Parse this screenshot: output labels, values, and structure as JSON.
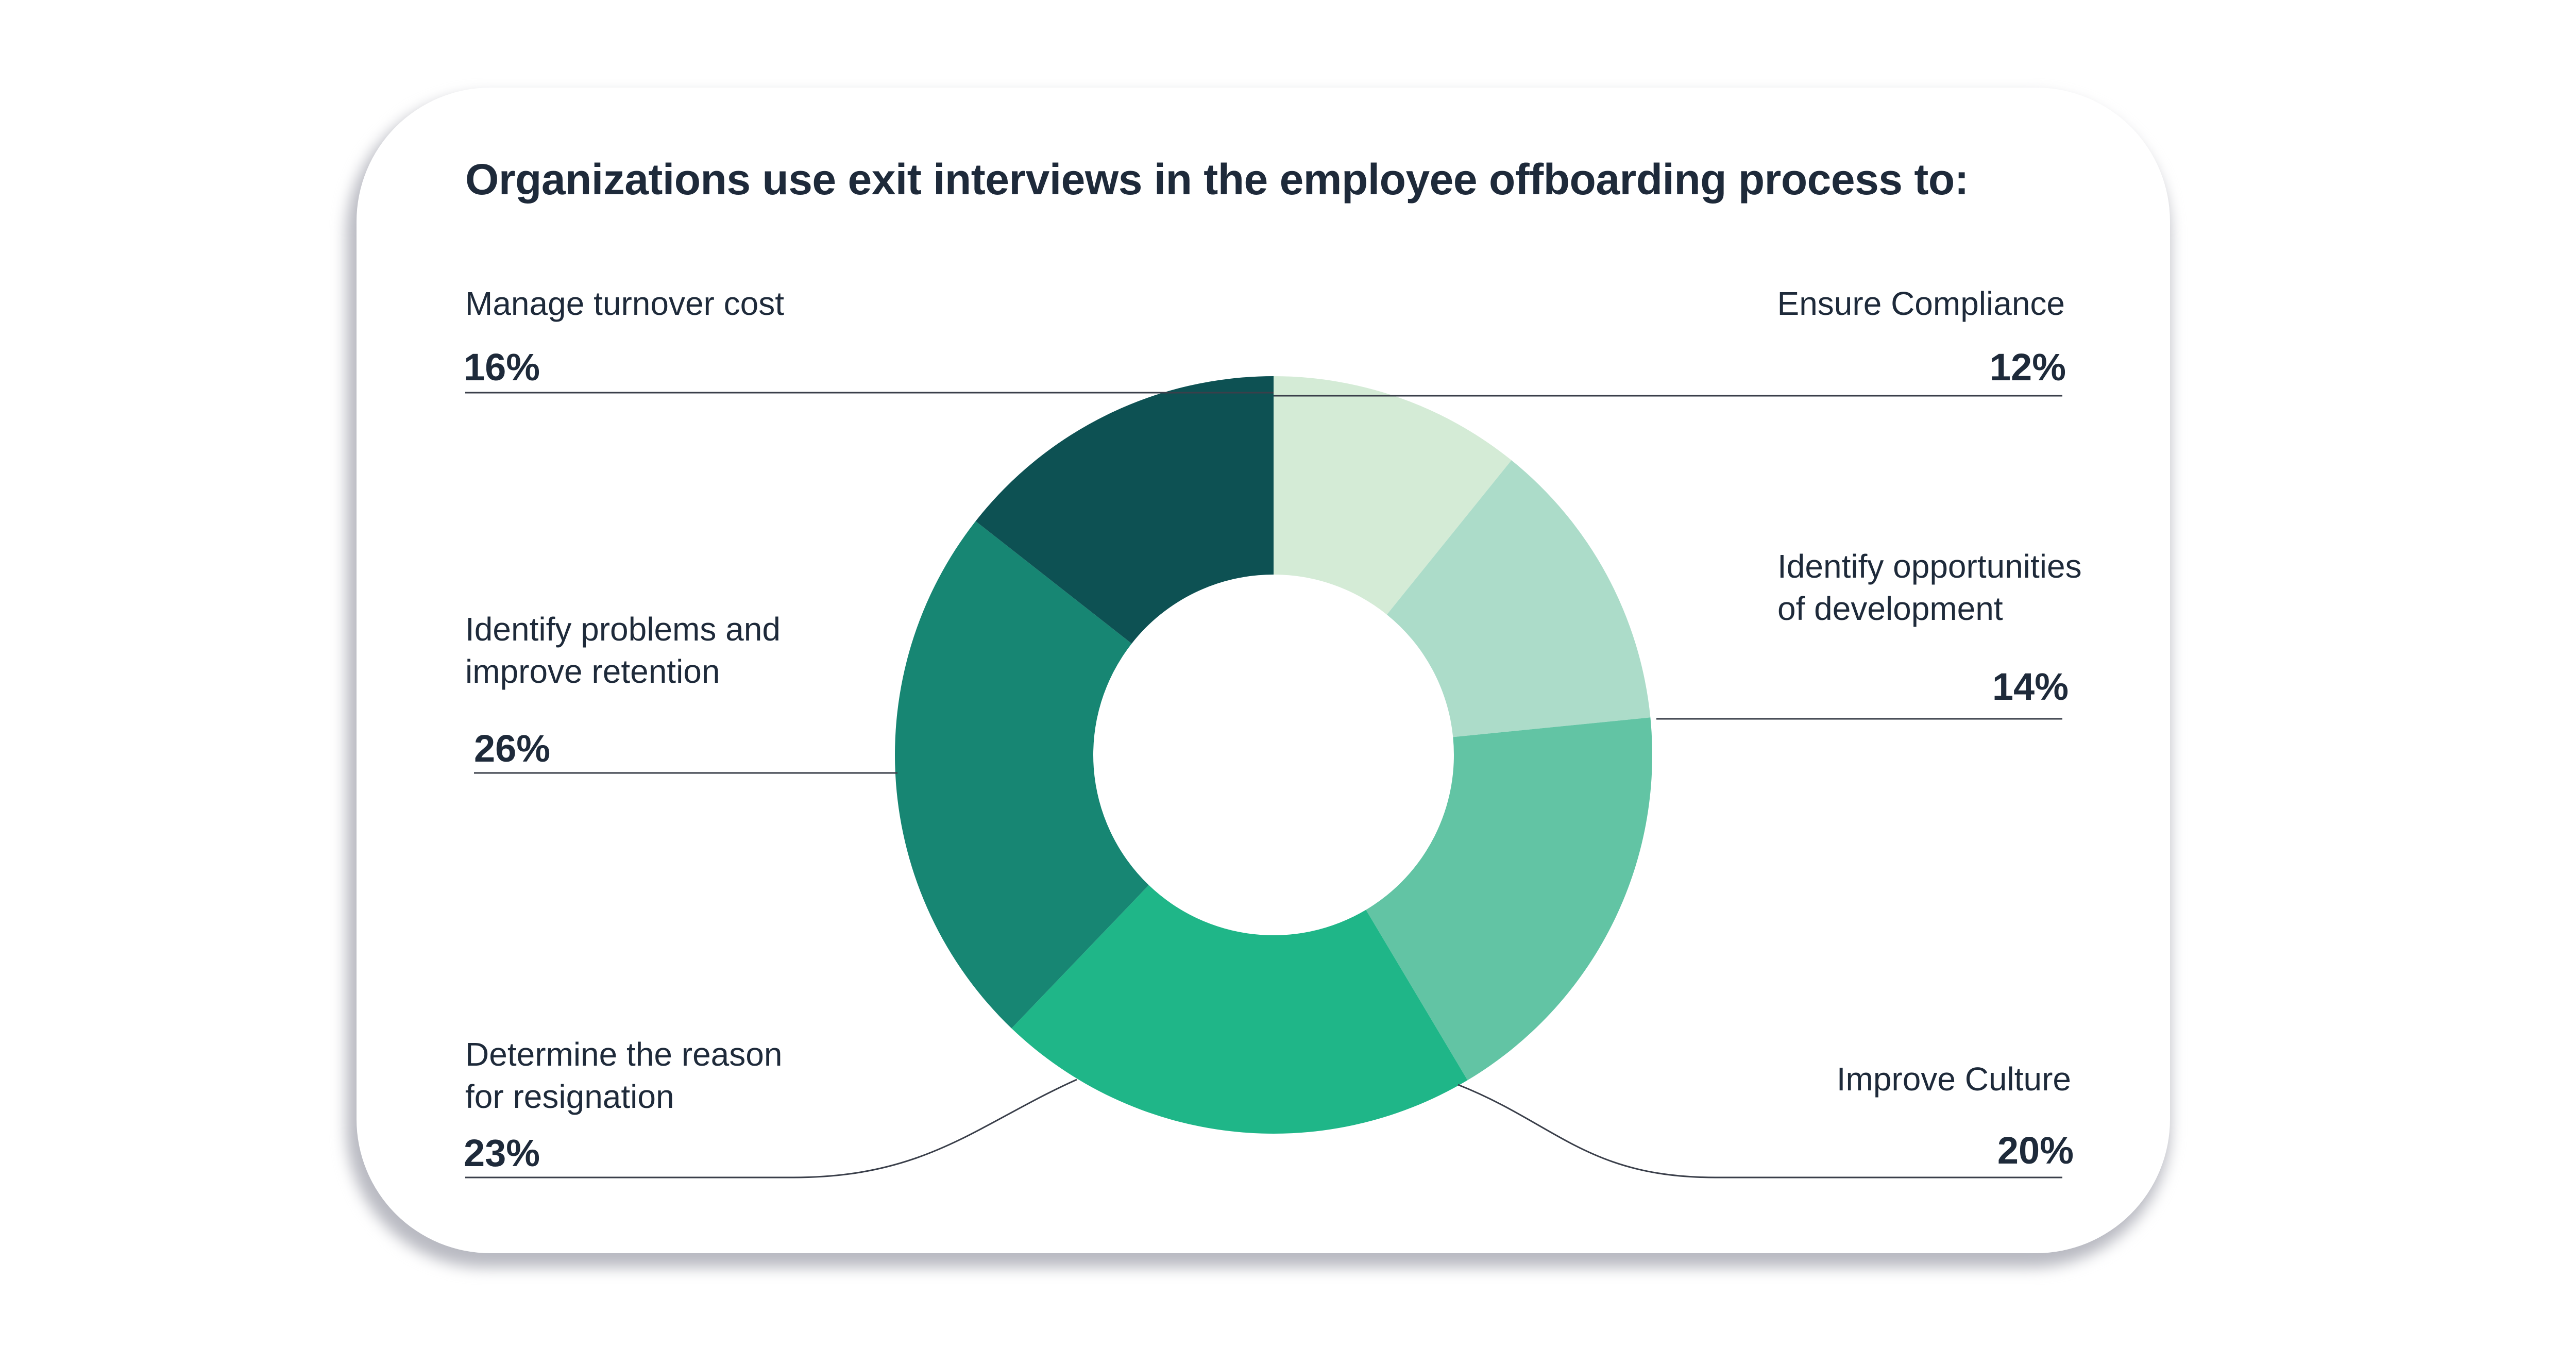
{
  "chart_data": {
    "type": "pie",
    "title": "Organizations use exit interviews in the employee offboarding process to:",
    "donut": true,
    "series": [
      {
        "name": "Ensure Compliance",
        "value": 12,
        "label": "12%",
        "color": "#d4ebd6"
      },
      {
        "name": "Identify opportunities\nof development",
        "value": 14,
        "label": "14%",
        "color": "#acdcc9"
      },
      {
        "name": "Improve Culture",
        "value": 20,
        "label": "20%",
        "color": "#62c4a4"
      },
      {
        "name": "Determine the reason\nfor resignation",
        "value": 23,
        "label": "23%",
        "color": "#1fb688"
      },
      {
        "name": "Identify problems and\nimprove retention",
        "value": 26,
        "label": "26%",
        "color": "#178673"
      },
      {
        "name": "Manage turnover cost",
        "value": 16,
        "label": "16%",
        "color": "#0d5153"
      }
    ]
  }
}
